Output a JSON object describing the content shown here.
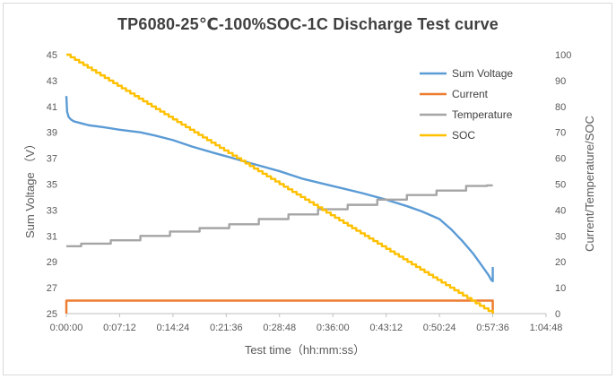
{
  "chart_data": {
    "type": "line",
    "title": "TP6080-25℃-100%SOC-1C  Discharge  Test   curve",
    "xlabel": "Test time（hh:mm:ss）",
    "ylabel_left": "Sum Voltage （V）",
    "ylabel_right": "Current/Temperature/SOC",
    "x_tick_labels": [
      "0:00:00",
      "0:07:12",
      "0:14:24",
      "0:21:36",
      "0:28:48",
      "0:36:00",
      "0:43:12",
      "0:50:24",
      "0:57:36",
      "1:04:48"
    ],
    "x_range_minutes": [
      0,
      64.8
    ],
    "ylim_left": [
      25,
      45
    ],
    "yticks_left": [
      25,
      27,
      29,
      31,
      33,
      35,
      37,
      39,
      41,
      43,
      45
    ],
    "ylim_right": [
      0,
      100
    ],
    "yticks_right": [
      0,
      10,
      20,
      30,
      40,
      50,
      60,
      70,
      80,
      90,
      100
    ],
    "legend_position": "top-right",
    "grid": false,
    "series": [
      {
        "name": "Sum Voltage",
        "axis": "left",
        "color": "#5b9bd5",
        "x": [
          0,
          0.1,
          0.3,
          0.6,
          1,
          2,
          3,
          5,
          7.2,
          10,
          12,
          14.4,
          17,
          20,
          21.6,
          25,
          28.8,
          32,
          36,
          40,
          43.2,
          46,
          48,
          50.4,
          52,
          53.5,
          55,
          56,
          57,
          57.4,
          57.6,
          57.6
        ],
        "y": [
          41.8,
          40.6,
          40.2,
          40.0,
          39.85,
          39.7,
          39.55,
          39.4,
          39.2,
          39.0,
          38.75,
          38.4,
          37.9,
          37.4,
          37.15,
          36.6,
          36.0,
          35.4,
          34.85,
          34.3,
          33.8,
          33.3,
          32.9,
          32.3,
          31.5,
          30.6,
          29.6,
          28.8,
          28.0,
          27.6,
          27.5,
          28.6
        ]
      },
      {
        "name": "Current",
        "axis": "right",
        "color": "#ed7d31",
        "x": [
          0,
          0,
          57.6,
          57.6
        ],
        "y": [
          0,
          5,
          5,
          0
        ]
      },
      {
        "name": "Temperature",
        "axis": "right",
        "color": "#a5a5a5",
        "x": [
          0,
          4,
          8,
          12,
          16,
          20,
          24,
          28,
          32,
          36,
          40,
          44,
          48,
          52,
          56,
          57.6
        ],
        "y": [
          26,
          27,
          28.3,
          30,
          31.7,
          33,
          34.5,
          36.5,
          38.3,
          40.3,
          42,
          44,
          45.8,
          47.5,
          49.3,
          49.5
        ]
      },
      {
        "name": "SOC",
        "axis": "right",
        "color": "#ffc000",
        "x": [
          0,
          57.6
        ],
        "y": [
          100,
          0
        ],
        "stepped": true
      }
    ]
  }
}
